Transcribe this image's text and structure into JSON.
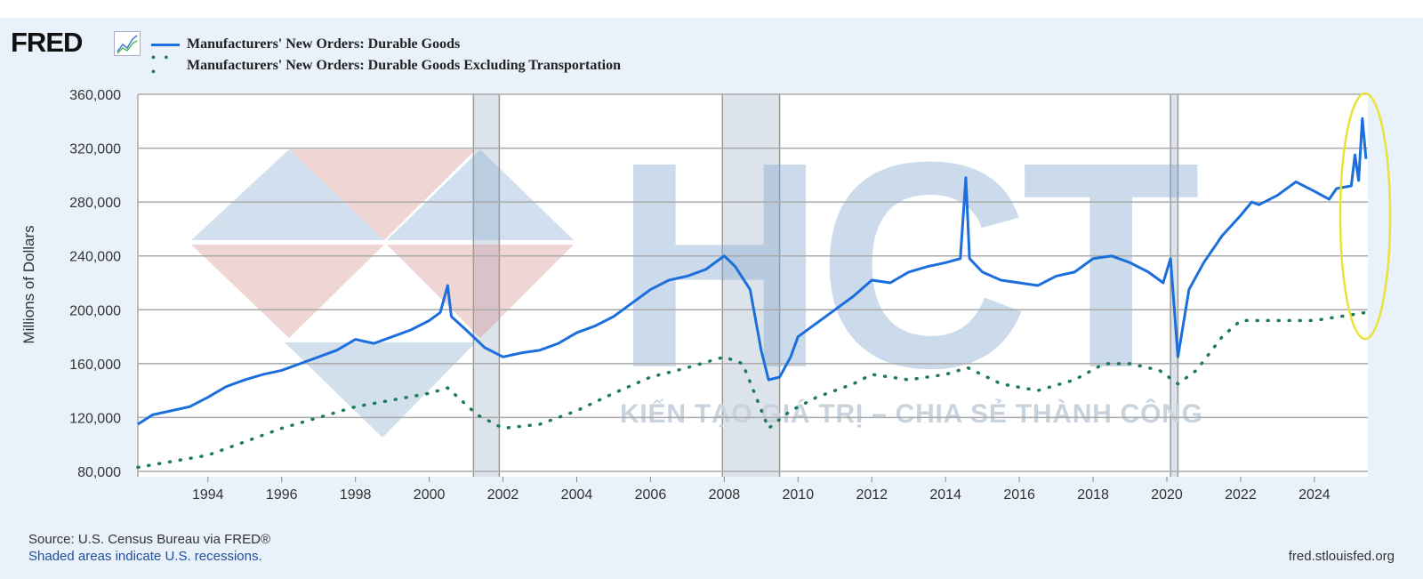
{
  "brand": "FRED",
  "source": "Source: U.S. Census Bureau via FRED®",
  "shaded_note": "Shaded areas indicate U.S. recessions.",
  "site": "fred.stlouisfed.org",
  "watermark": {
    "letters": "HCT",
    "slogan": "KIẾN TẠO GIÁ TRỊ – CHIA SẺ THÀNH CÔNG"
  },
  "colors": {
    "series1": "#1a6fdc",
    "series2": "#1e7a5a",
    "recession": "#dde3ea",
    "highlight": "#e8e23a"
  },
  "chart_data": {
    "type": "line",
    "title": "",
    "xlabel": "",
    "ylabel": "Millions of Dollars",
    "xlim": [
      1992.1,
      2025.45
    ],
    "ylim": [
      80000,
      360000
    ],
    "yticks": [
      80000,
      120000,
      160000,
      200000,
      240000,
      280000,
      320000,
      360000
    ],
    "ytick_labels": [
      "80,000",
      "120,000",
      "160,000",
      "200,000",
      "240,000",
      "280,000",
      "320,000",
      "360,000"
    ],
    "xticks": [
      1994,
      1996,
      1998,
      2000,
      2002,
      2004,
      2006,
      2008,
      2010,
      2012,
      2014,
      2016,
      2018,
      2020,
      2022,
      2024
    ],
    "xtick_labels": [
      "1994",
      "1996",
      "1998",
      "2000",
      "2002",
      "2004",
      "2006",
      "2008",
      "2010",
      "2012",
      "2014",
      "2016",
      "2018",
      "2020",
      "2022",
      "2024"
    ],
    "grid": true,
    "legend_position": "top-left",
    "recessions": [
      [
        2001.2,
        2001.9
      ],
      [
        2007.95,
        2009.5
      ],
      [
        2020.1,
        2020.3
      ]
    ],
    "series": [
      {
        "name": "Manufacturers' New Orders: Durable Goods",
        "style": "solid",
        "x": [
          1992.1,
          1992.5,
          1993,
          1993.5,
          1994,
          1994.5,
          1995,
          1995.5,
          1996,
          1996.5,
          1997,
          1997.5,
          1998,
          1998.5,
          1999,
          1999.5,
          2000,
          2000.3,
          2000.5,
          2000.6,
          2001,
          2001.5,
          2002,
          2002.5,
          2003,
          2003.5,
          2004,
          2004.5,
          2005,
          2005.5,
          2006,
          2006.5,
          2007,
          2007.5,
          2008,
          2008.3,
          2008.7,
          2009,
          2009.2,
          2009.5,
          2009.8,
          2010,
          2010.5,
          2011,
          2011.5,
          2012,
          2012.5,
          2013,
          2013.5,
          2014,
          2014.4,
          2014.55,
          2014.65,
          2015,
          2015.5,
          2016,
          2016.5,
          2017,
          2017.5,
          2018,
          2018.5,
          2019,
          2019.5,
          2019.9,
          2020.1,
          2020.3,
          2020.6,
          2021,
          2021.5,
          2022,
          2022.3,
          2022.5,
          2023,
          2023.5,
          2024,
          2024.4,
          2024.6,
          2025,
          2025.1,
          2025.2,
          2025.3,
          2025.4
        ],
        "values": [
          115000,
          122000,
          125000,
          128000,
          135000,
          143000,
          148000,
          152000,
          155000,
          160000,
          165000,
          170000,
          178000,
          175000,
          180000,
          185000,
          192000,
          198000,
          218000,
          195000,
          185000,
          172000,
          165000,
          168000,
          170000,
          175000,
          183000,
          188000,
          195000,
          205000,
          215000,
          222000,
          225000,
          230000,
          240000,
          232000,
          215000,
          170000,
          148000,
          150000,
          165000,
          180000,
          190000,
          200000,
          210000,
          222000,
          220000,
          228000,
          232000,
          235000,
          238000,
          298000,
          238000,
          228000,
          222000,
          220000,
          218000,
          225000,
          228000,
          238000,
          240000,
          235000,
          228000,
          220000,
          238000,
          165000,
          215000,
          235000,
          255000,
          270000,
          280000,
          278000,
          285000,
          295000,
          288000,
          282000,
          290000,
          292000,
          315000,
          296000,
          342000,
          312000
        ]
      },
      {
        "name": "Manufacturers' New Orders: Durable Goods Excluding Transportation",
        "style": "dotted",
        "x": [
          1992.1,
          1994,
          1996,
          1998,
          2000,
          2000.5,
          2001.3,
          2002,
          2003,
          2004,
          2005,
          2006,
          2007,
          2008,
          2008.5,
          2009.2,
          2009.8,
          2010.5,
          2011.5,
          2012,
          2013,
          2014,
          2014.6,
          2015.5,
          2016.5,
          2017.5,
          2018.3,
          2019,
          2019.8,
          2020.3,
          2020.8,
          2021.5,
          2022,
          2023,
          2024,
          2025.4
        ],
        "values": [
          83000,
          92000,
          112000,
          128000,
          138000,
          142000,
          122000,
          112000,
          115000,
          125000,
          138000,
          150000,
          157000,
          165000,
          160000,
          112000,
          125000,
          135000,
          145000,
          152000,
          148000,
          152000,
          157000,
          145000,
          140000,
          148000,
          160000,
          160000,
          155000,
          145000,
          155000,
          180000,
          192000,
          192000,
          192000,
          198000
        ]
      }
    ]
  }
}
